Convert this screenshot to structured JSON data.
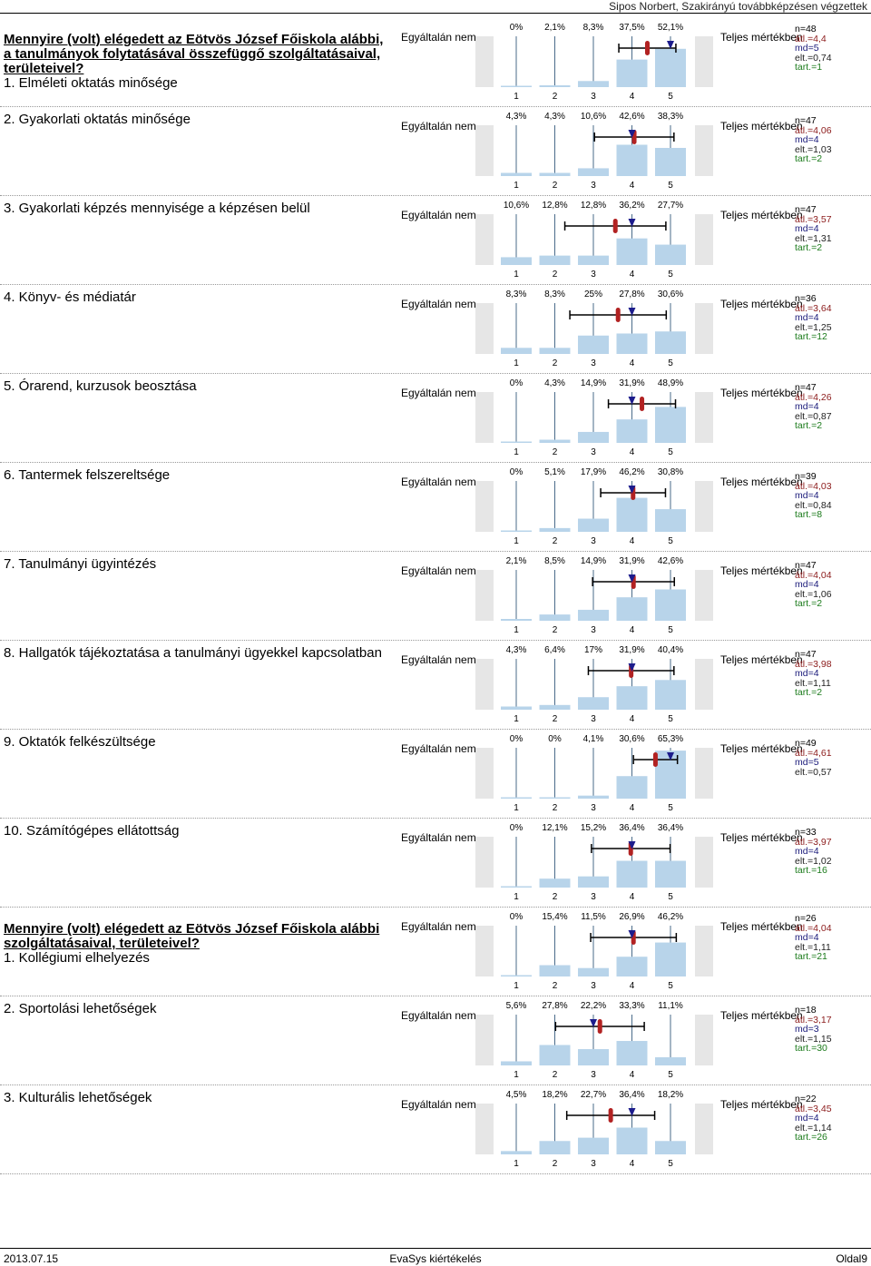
{
  "header": {
    "title": "Sipos Norbert, Szakirányú továbbképzésen végzettek"
  },
  "scale": {
    "left_label": "Egyáltalán nem",
    "right_label": "Teljes mértékben",
    "ticks": [
      "1",
      "2",
      "3",
      "4",
      "5"
    ]
  },
  "colors": {
    "bar": "#b8d4ea",
    "mean": "#b22222",
    "median": "#1c1c8c",
    "line": "#000000",
    "axis": "#4a6b8a"
  },
  "chart_data": [
    {
      "type": "bar",
      "section": "Mennyire (volt) elégedett az Eötvös József Főiskola alábbi, a tanulmányok folytatásával összefüggő szolgáltatásaival, területeivel?",
      "title": "1. Elméleti oktatás minősége",
      "categories": [
        "1",
        "2",
        "3",
        "4",
        "5"
      ],
      "percent_labels": [
        "0%",
        "2,1%",
        "8,3%",
        "37,5%",
        "52,1%"
      ],
      "values": [
        0,
        2.1,
        8.3,
        37.5,
        52.1
      ],
      "stats": {
        "n": "n=48",
        "mean": "átl.=4,4",
        "median": "md=5",
        "sd": "elt.=0,74",
        "abst": "tart.=1"
      },
      "mean": 4.4,
      "median": 5,
      "sd": 0.74
    },
    {
      "type": "bar",
      "title": "2. Gyakorlati oktatás minősége",
      "categories": [
        "1",
        "2",
        "3",
        "4",
        "5"
      ],
      "percent_labels": [
        "4,3%",
        "4,3%",
        "10,6%",
        "42,6%",
        "38,3%"
      ],
      "values": [
        4.3,
        4.3,
        10.6,
        42.6,
        38.3
      ],
      "stats": {
        "n": "n=47",
        "mean": "átl.=4,06",
        "median": "md=4",
        "sd": "elt.=1,03",
        "abst": "tart.=2"
      },
      "mean": 4.06,
      "median": 4,
      "sd": 1.03
    },
    {
      "type": "bar",
      "title": "3. Gyakorlati képzés mennyisége a képzésen belül",
      "categories": [
        "1",
        "2",
        "3",
        "4",
        "5"
      ],
      "percent_labels": [
        "10,6%",
        "12,8%",
        "12,8%",
        "36,2%",
        "27,7%"
      ],
      "values": [
        10.6,
        12.8,
        12.8,
        36.2,
        27.7
      ],
      "stats": {
        "n": "n=47",
        "mean": "átl.=3,57",
        "median": "md=4",
        "sd": "elt.=1,31",
        "abst": "tart.=2"
      },
      "mean": 3.57,
      "median": 4,
      "sd": 1.31
    },
    {
      "type": "bar",
      "title": "4. Könyv- és médiatár",
      "categories": [
        "1",
        "2",
        "3",
        "4",
        "5"
      ],
      "percent_labels": [
        "8,3%",
        "8,3%",
        "25%",
        "27,8%",
        "30,6%"
      ],
      "values": [
        8.3,
        8.3,
        25,
        27.8,
        30.6
      ],
      "stats": {
        "n": "n=36",
        "mean": "átl.=3,64",
        "median": "md=4",
        "sd": "elt.=1,25",
        "abst": "tart.=12"
      },
      "mean": 3.64,
      "median": 4,
      "sd": 1.25
    },
    {
      "type": "bar",
      "title": "5. Órarend, kurzusok beosztása",
      "categories": [
        "1",
        "2",
        "3",
        "4",
        "5"
      ],
      "percent_labels": [
        "0%",
        "4,3%",
        "14,9%",
        "31,9%",
        "48,9%"
      ],
      "values": [
        0,
        4.3,
        14.9,
        31.9,
        48.9
      ],
      "stats": {
        "n": "n=47",
        "mean": "átl.=4,26",
        "median": "md=4",
        "sd": "elt.=0,87",
        "abst": "tart.=2"
      },
      "mean": 4.26,
      "median": 4,
      "sd": 0.87
    },
    {
      "type": "bar",
      "title": "6. Tantermek felszereltsége",
      "categories": [
        "1",
        "2",
        "3",
        "4",
        "5"
      ],
      "percent_labels": [
        "0%",
        "5,1%",
        "17,9%",
        "46,2%",
        "30,8%"
      ],
      "values": [
        0,
        5.1,
        17.9,
        46.2,
        30.8
      ],
      "stats": {
        "n": "n=39",
        "mean": "átl.=4,03",
        "median": "md=4",
        "sd": "elt.=0,84",
        "abst": "tart.=8"
      },
      "mean": 4.03,
      "median": 4,
      "sd": 0.84
    },
    {
      "type": "bar",
      "title": "7. Tanulmányi ügyintézés",
      "categories": [
        "1",
        "2",
        "3",
        "4",
        "5"
      ],
      "percent_labels": [
        "2,1%",
        "8,5%",
        "14,9%",
        "31,9%",
        "42,6%"
      ],
      "values": [
        2.1,
        8.5,
        14.9,
        31.9,
        42.6
      ],
      "stats": {
        "n": "n=47",
        "mean": "átl.=4,04",
        "median": "md=4",
        "sd": "elt.=1,06",
        "abst": "tart.=2"
      },
      "mean": 4.04,
      "median": 4,
      "sd": 1.06
    },
    {
      "type": "bar",
      "title": "8. Hallgatók tájékoztatása a tanulmányi ügyekkel kapcsolatban",
      "categories": [
        "1",
        "2",
        "3",
        "4",
        "5"
      ],
      "percent_labels": [
        "4,3%",
        "6,4%",
        "17%",
        "31,9%",
        "40,4%"
      ],
      "values": [
        4.3,
        6.4,
        17,
        31.9,
        40.4
      ],
      "stats": {
        "n": "n=47",
        "mean": "átl.=3,98",
        "median": "md=4",
        "sd": "elt.=1,11",
        "abst": "tart.=2"
      },
      "mean": 3.98,
      "median": 4,
      "sd": 1.11
    },
    {
      "type": "bar",
      "title": "9. Oktatók felkészültsége",
      "categories": [
        "1",
        "2",
        "3",
        "4",
        "5"
      ],
      "percent_labels": [
        "0%",
        "0%",
        "4,1%",
        "30,6%",
        "65,3%"
      ],
      "values": [
        0,
        0,
        4.1,
        30.6,
        65.3
      ],
      "stats": {
        "n": "n=49",
        "mean": "átl.=4,61",
        "median": "md=5",
        "sd": "elt.=0,57",
        "abst": ""
      },
      "mean": 4.61,
      "median": 5,
      "sd": 0.57
    },
    {
      "type": "bar",
      "title": "10. Számítógépes ellátottság",
      "categories": [
        "1",
        "2",
        "3",
        "4",
        "5"
      ],
      "percent_labels": [
        "0%",
        "12,1%",
        "15,2%",
        "36,4%",
        "36,4%"
      ],
      "values": [
        0,
        12.1,
        15.2,
        36.4,
        36.4
      ],
      "stats": {
        "n": "n=33",
        "mean": "átl.=3,97",
        "median": "md=4",
        "sd": "elt.=1,02",
        "abst": "tart.=16"
      },
      "mean": 3.97,
      "median": 4,
      "sd": 1.02
    },
    {
      "type": "bar",
      "section": "Mennyire (volt) elégedett az Eötvös József Főiskola alábbi szolgáltatásaival, területeivel?",
      "title": "1. Kollégiumi elhelyezés",
      "categories": [
        "1",
        "2",
        "3",
        "4",
        "5"
      ],
      "percent_labels": [
        "0%",
        "15,4%",
        "11,5%",
        "26,9%",
        "46,2%"
      ],
      "values": [
        0,
        15.4,
        11.5,
        26.9,
        46.2
      ],
      "stats": {
        "n": "n=26",
        "mean": "átl.=4,04",
        "median": "md=4",
        "sd": "elt.=1,11",
        "abst": "tart.=21"
      },
      "mean": 4.04,
      "median": 4,
      "sd": 1.11
    },
    {
      "type": "bar",
      "title": "2. Sportolási lehetőségek",
      "categories": [
        "1",
        "2",
        "3",
        "4",
        "5"
      ],
      "percent_labels": [
        "5,6%",
        "27,8%",
        "22,2%",
        "33,3%",
        "11,1%"
      ],
      "values": [
        5.6,
        27.8,
        22.2,
        33.3,
        11.1
      ],
      "stats": {
        "n": "n=18",
        "mean": "átl.=3,17",
        "median": "md=3",
        "sd": "elt.=1,15",
        "abst": "tart.=30"
      },
      "mean": 3.17,
      "median": 3,
      "sd": 1.15
    },
    {
      "type": "bar",
      "title": "3. Kulturális lehetőségek",
      "categories": [
        "1",
        "2",
        "3",
        "4",
        "5"
      ],
      "percent_labels": [
        "4,5%",
        "18,2%",
        "22,7%",
        "36,4%",
        "18,2%"
      ],
      "values": [
        4.5,
        18.2,
        22.7,
        36.4,
        18.2
      ],
      "stats": {
        "n": "n=22",
        "mean": "átl.=3,45",
        "median": "md=4",
        "sd": "elt.=1,14",
        "abst": "tart.=26"
      },
      "mean": 3.45,
      "median": 4,
      "sd": 1.14
    }
  ],
  "footer": {
    "date": "2013.07.15",
    "center": "EvaSys kiértékelés",
    "page": "Oldal9"
  }
}
